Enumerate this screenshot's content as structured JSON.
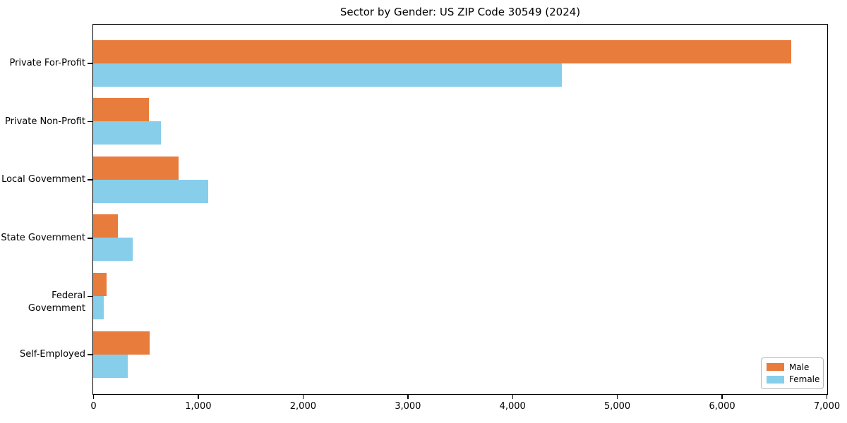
{
  "chart_data": {
    "type": "bar",
    "orientation": "horizontal",
    "title": "Sector by Gender: US ZIP Code 30549 (2024)",
    "categories": [
      "Private For-Profit",
      "Private Non-Profit",
      "Local Government",
      "State Government",
      "Federal Government",
      "Self-Employed"
    ],
    "series": [
      {
        "name": "Male",
        "color": "#E87C3C",
        "values": [
          6660,
          535,
          815,
          235,
          130,
          540
        ]
      },
      {
        "name": "Female",
        "color": "#87CEEB",
        "values": [
          4470,
          645,
          1095,
          380,
          100,
          330
        ]
      }
    ],
    "xlabel": "",
    "ylabel": "",
    "xlim": [
      0,
      7000
    ],
    "xticks": [
      0,
      1000,
      2000,
      3000,
      4000,
      5000,
      6000,
      7000
    ],
    "xtick_labels": [
      "0",
      "1,000",
      "2,000",
      "3,000",
      "4,000",
      "5,000",
      "6,000",
      "7,000"
    ],
    "grid": false,
    "legend": {
      "position": "lower right"
    }
  },
  "colors": {
    "male": "#E87C3C",
    "female": "#87CEEB",
    "spine": "#000000",
    "legend_border": "#b7b7b7",
    "background": "#ffffff"
  }
}
